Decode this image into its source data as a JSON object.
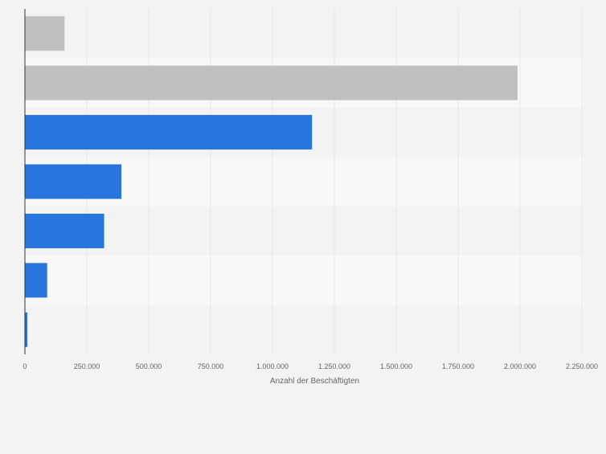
{
  "chart_data": {
    "type": "bar",
    "orientation": "horizontal",
    "categories": [
      "",
      "",
      "",
      "",
      "",
      "",
      ""
    ],
    "values": [
      160000,
      1990000,
      1160000,
      390000,
      320000,
      90000,
      10000
    ],
    "bar_colors": [
      "#c0c0c0",
      "#c0c0c0",
      "#2876dd",
      "#2876dd",
      "#2876dd",
      "#2876dd",
      "#2876dd"
    ],
    "title": "",
    "xlabel": "Anzahl der Beschäftigten",
    "ylabel": "",
    "xlim": [
      0,
      2250000
    ],
    "xticks": [
      0,
      250000,
      500000,
      750000,
      1000000,
      1250000,
      1500000,
      1750000,
      2000000,
      2250000
    ],
    "xtick_labels": [
      "0",
      "250.000",
      "500.000",
      "750.000",
      "1.000.000",
      "1.250.000",
      "1.500.000",
      "1.750.000",
      "2.000.000",
      "2.250.000"
    ],
    "grid": true,
    "legend": "none"
  },
  "colors": {
    "background": "#f3f3f3",
    "band_light": "#f8f8f8",
    "band_dark": "#f3f3f3",
    "gridline": "#dcdcdc",
    "axis_text": "#666666"
  }
}
